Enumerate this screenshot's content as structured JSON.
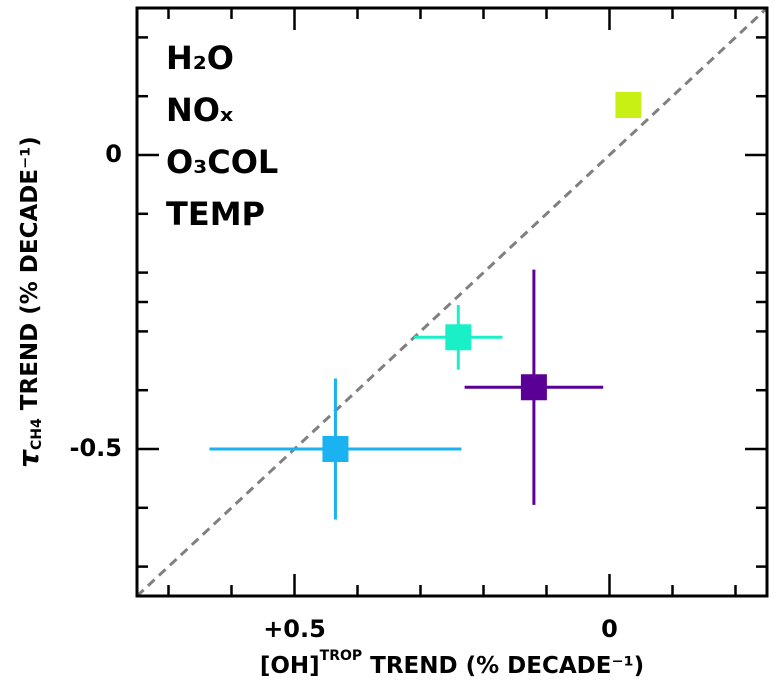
{
  "chart_data": {
    "type": "scatter",
    "xlabel": {
      "main": "[OH]",
      "sup": "TROP",
      "rest": " TREND (% DECADE⁻¹)"
    },
    "ylabel": {
      "main": "τ",
      "sub": "CH4",
      "rest": " TREND (% DECADE⁻¹)"
    },
    "xlim": [
      0.75,
      -0.25
    ],
    "ylim": [
      -0.75,
      0.25
    ],
    "xticks": [
      {
        "value": 0.5,
        "label": "+0.5"
      },
      0
    ],
    "yticks": [
      0,
      -0.5
    ],
    "xminor": [
      0.7,
      0.6,
      0.4,
      0.3,
      0.2,
      0.1,
      -0.1,
      -0.2
    ],
    "yminor": [
      0.2,
      0.1,
      -0.1,
      -0.2,
      -0.25,
      -0.3,
      -0.4,
      -0.6,
      -0.7
    ],
    "reference_line": {
      "slope": -1,
      "intercept": 0,
      "color": "#808080"
    },
    "legend": "upper left",
    "series": [
      {
        "name": "H₂O",
        "color": "#1ab2f0",
        "x": [
          0.435
        ],
        "values": [
          -0.5
        ],
        "xerr": [
          0.2
        ],
        "yerr": [
          0.12
        ]
      },
      {
        "name": "NOₓ",
        "color": "#19f0c8",
        "x": [
          0.24
        ],
        "values": [
          -0.31
        ],
        "xerr": [
          0.07
        ],
        "yerr": [
          0.055
        ]
      },
      {
        "name": "O₃COL",
        "color": "#5a0096",
        "x": [
          0.12
        ],
        "values": [
          -0.395
        ],
        "xerr": [
          0.11
        ],
        "yerr": [
          0.2
        ]
      },
      {
        "name": "TEMP",
        "color": "#c8f014",
        "x": [
          -0.03
        ],
        "values": [
          0.085
        ],
        "xerr": [
          null
        ],
        "yerr": [
          null
        ]
      }
    ]
  }
}
